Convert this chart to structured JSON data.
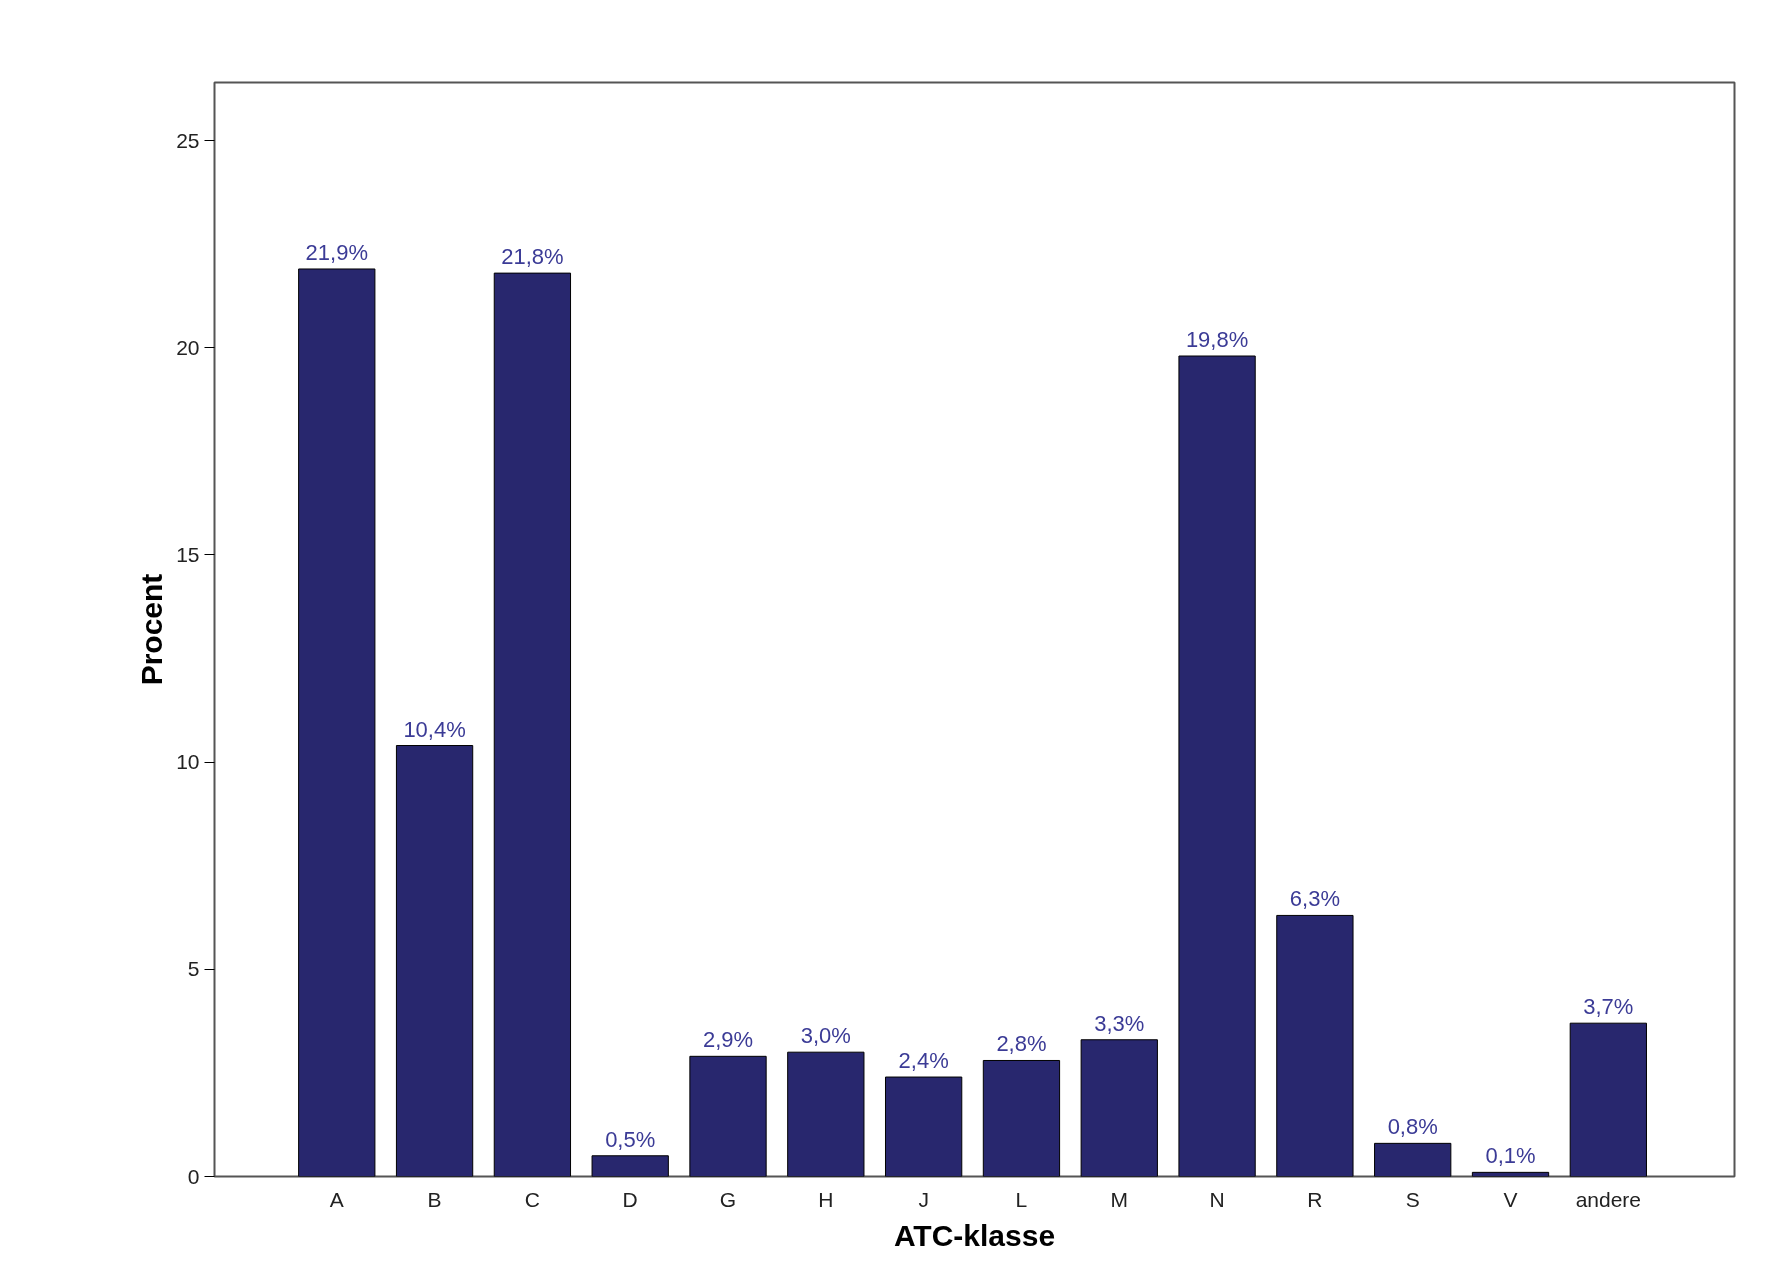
{
  "chart_data": {
    "type": "bar",
    "xlabel": "ATC-klasse",
    "ylabel": "Procent",
    "categories": [
      "A",
      "B",
      "C",
      "D",
      "G",
      "H",
      "J",
      "L",
      "M",
      "N",
      "R",
      "S",
      "V",
      "andere"
    ],
    "values": [
      21.9,
      10.4,
      21.8,
      0.5,
      2.9,
      3.0,
      2.4,
      2.8,
      3.3,
      19.8,
      6.3,
      0.8,
      0.1,
      3.7
    ],
    "value_labels": [
      "21,9%",
      "10,4%",
      "21,8%",
      "0,5%",
      "2,9%",
      "3,0%",
      "2,4%",
      "2,8%",
      "3,3%",
      "19,8%",
      "6,3%",
      "0,8%",
      "0,1%",
      "3,7%"
    ],
    "color": "#28276e",
    "ylim": [
      0,
      26.4
    ],
    "yticks": [
      0,
      5,
      10,
      15,
      20,
      25
    ],
    "grid": false
  }
}
